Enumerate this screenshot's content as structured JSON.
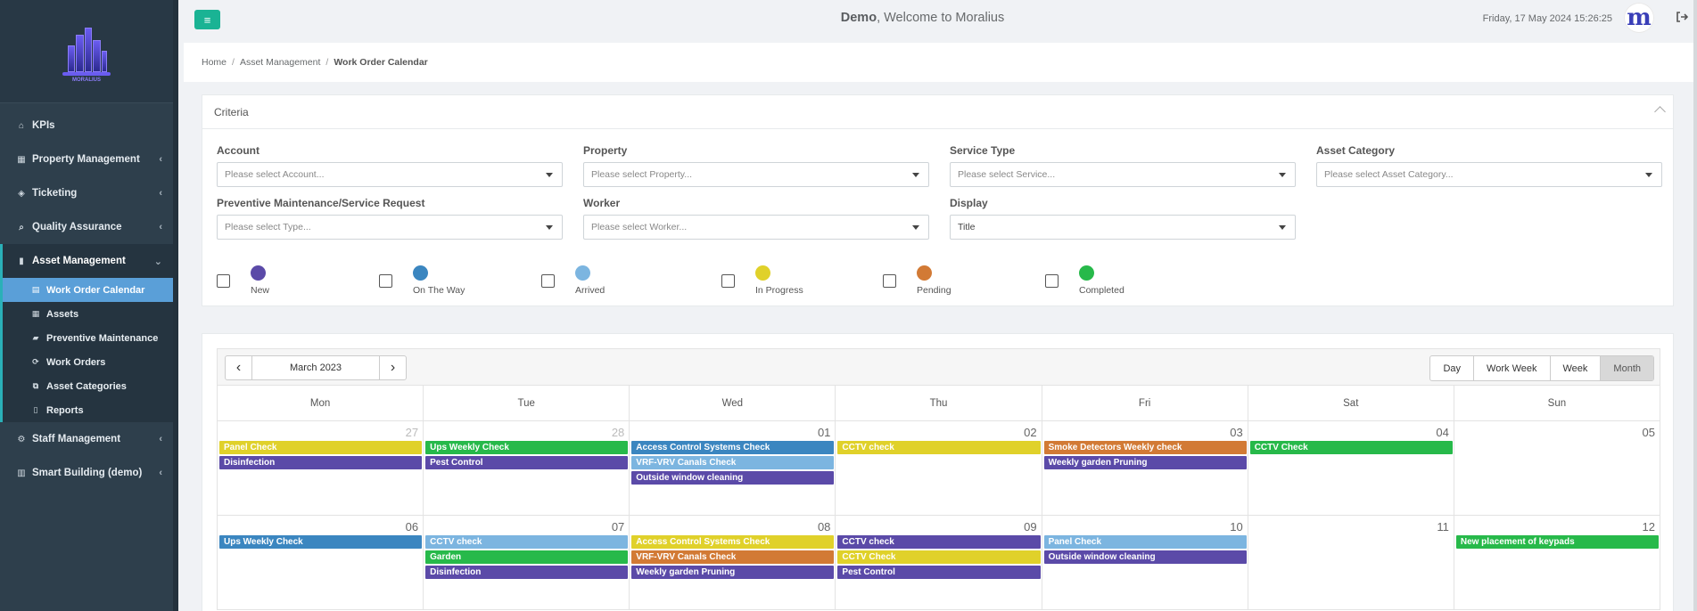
{
  "header": {
    "welcome_user": "Demo",
    "welcome_text": ", Welcome to Moralius",
    "datetime": "Friday, 17 May 2024 15:26:25",
    "avatar_letter": "m",
    "menu_icon": "hamburger-icon",
    "logout_icon": "logout-icon"
  },
  "sidebar": {
    "logo_text": "MORALIUS",
    "items": [
      {
        "label": "KPIs",
        "icon": "home-icon",
        "glyph": "⌂",
        "chev": ""
      },
      {
        "label": "Property Management",
        "icon": "building-icon",
        "glyph": "▦",
        "chev": "‹"
      },
      {
        "label": "Ticketing",
        "icon": "tag-icon",
        "glyph": "◈",
        "chev": "‹"
      },
      {
        "label": "Quality Assurance",
        "icon": "search-icon",
        "glyph": "⌕",
        "chev": "‹"
      },
      {
        "label": "Asset Management",
        "icon": "file-icon",
        "glyph": "▮",
        "chev": "⌄"
      }
    ],
    "subitems": [
      {
        "label": "Work Order Calendar",
        "icon": "calendar-icon",
        "glyph": "▤"
      },
      {
        "label": "Assets",
        "icon": "grid-icon",
        "glyph": "▦"
      },
      {
        "label": "Preventive Maintenance",
        "icon": "truck-icon",
        "glyph": "▰"
      },
      {
        "label": "Work Orders",
        "icon": "refresh-icon",
        "glyph": "⟳"
      },
      {
        "label": "Asset Categories",
        "icon": "cubes-icon",
        "glyph": "⧉"
      },
      {
        "label": "Reports",
        "icon": "book-icon",
        "glyph": "▯"
      }
    ],
    "bottom_items": [
      {
        "label": "Staff Management",
        "icon": "gear-icon",
        "glyph": "⚙",
        "chev": "‹"
      },
      {
        "label": "Smart Building (demo)",
        "icon": "chart-icon",
        "glyph": "▥",
        "chev": "‹"
      }
    ]
  },
  "breadcrumb": {
    "home": "Home",
    "section": "Asset Management",
    "current": "Work Order Calendar"
  },
  "criteria": {
    "title": "Criteria",
    "fields": {
      "account": {
        "label": "Account",
        "placeholder": "Please select Account..."
      },
      "property": {
        "label": "Property",
        "placeholder": "Please select Property..."
      },
      "service": {
        "label": "Service Type",
        "placeholder": "Please select Service..."
      },
      "category": {
        "label": "Asset Category",
        "placeholder": "Please select Asset Category..."
      },
      "type": {
        "label": "Preventive Maintenance/Service Request",
        "placeholder": "Please select Type..."
      },
      "worker": {
        "label": "Worker",
        "placeholder": "Please select Worker..."
      },
      "display": {
        "label": "Display",
        "value": "Title"
      }
    },
    "statuses": [
      {
        "label": "New",
        "color": "#5b4aa8"
      },
      {
        "label": "On The Way",
        "color": "#3b86c0"
      },
      {
        "label": "Arrived",
        "color": "#7cb5e0"
      },
      {
        "label": "In Progress",
        "color": "#e0d12a"
      },
      {
        "label": "Pending",
        "color": "#d27a35"
      },
      {
        "label": "Completed",
        "color": "#27b94a"
      }
    ]
  },
  "calendar": {
    "month_label": "March 2023",
    "views": [
      "Day",
      "Work Week",
      "Week",
      "Month"
    ],
    "active_view": "Month",
    "day_headers": [
      "Mon",
      "Tue",
      "Wed",
      "Thu",
      "Fri",
      "Sat",
      "Sun"
    ],
    "weeks": [
      [
        {
          "day": "27",
          "other": true,
          "events": [
            {
              "t": "Panel Check",
              "c": "#e0d12a"
            },
            {
              "t": "Disinfection",
              "c": "#5b4aa8"
            }
          ]
        },
        {
          "day": "28",
          "other": true,
          "events": [
            {
              "t": "Ups Weekly Check",
              "c": "#27b94a"
            },
            {
              "t": "Pest Control",
              "c": "#5b4aa8"
            }
          ]
        },
        {
          "day": "01",
          "events": [
            {
              "t": "Access Control Systems Check",
              "c": "#3b86c0"
            },
            {
              "t": "VRF-VRV Canals Check",
              "c": "#7cb5e0"
            },
            {
              "t": "Outside window cleaning",
              "c": "#5b4aa8"
            }
          ]
        },
        {
          "day": "02",
          "events": [
            {
              "t": "CCTV check",
              "c": "#e0d12a"
            }
          ]
        },
        {
          "day": "03",
          "events": [
            {
              "t": "Smoke Detectors Weekly check",
              "c": "#d27a35"
            },
            {
              "t": "Weekly garden Pruning",
              "c": "#5b4aa8"
            }
          ]
        },
        {
          "day": "04",
          "events": [
            {
              "t": "CCTV Check",
              "c": "#27b94a"
            }
          ]
        },
        {
          "day": "05",
          "events": []
        }
      ],
      [
        {
          "day": "06",
          "events": [
            {
              "t": "Ups Weekly Check",
              "c": "#3b86c0"
            }
          ]
        },
        {
          "day": "07",
          "events": [
            {
              "t": "CCTV check",
              "c": "#7cb5e0"
            },
            {
              "t": "Garden",
              "c": "#27b94a"
            },
            {
              "t": "Disinfection",
              "c": "#5b4aa8"
            }
          ]
        },
        {
          "day": "08",
          "events": [
            {
              "t": "Access Control Systems Check",
              "c": "#e0d12a"
            },
            {
              "t": "VRF-VRV Canals Check",
              "c": "#d27a35"
            },
            {
              "t": "Weekly garden Pruning",
              "c": "#5b4aa8"
            }
          ]
        },
        {
          "day": "09",
          "events": [
            {
              "t": "CCTV check",
              "c": "#5b4aa8"
            },
            {
              "t": "CCTV Check",
              "c": "#e0d12a"
            },
            {
              "t": "Pest Control",
              "c": "#5b4aa8"
            }
          ]
        },
        {
          "day": "10",
          "events": [
            {
              "t": "Panel Check",
              "c": "#7cb5e0"
            },
            {
              "t": "Outside window cleaning",
              "c": "#5b4aa8"
            }
          ]
        },
        {
          "day": "11",
          "events": []
        },
        {
          "day": "12",
          "events": [
            {
              "t": "New placement of keypads",
              "c": "#27b94a"
            }
          ]
        }
      ]
    ]
  }
}
